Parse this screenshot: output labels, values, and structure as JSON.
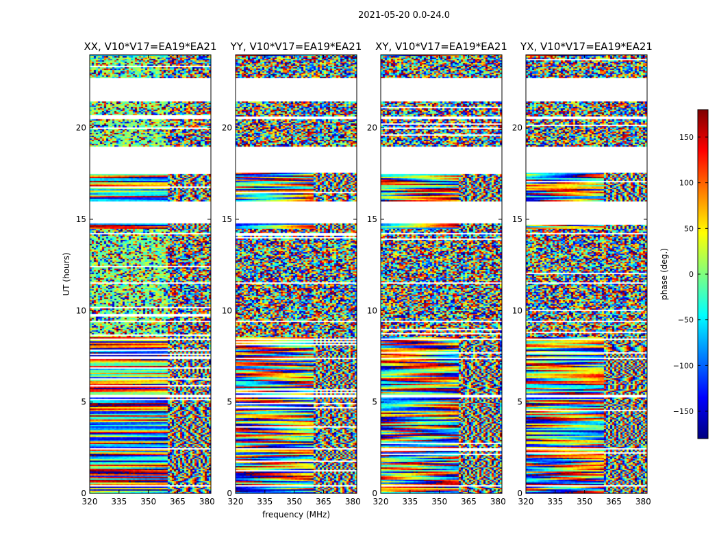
{
  "figure_title": "2021-05-20 0.0-24.0",
  "chart_data": [
    {
      "type": "heatmap",
      "title": "XX, V10*V17=EA19*EA21",
      "xlabel": "",
      "ylabel": "UT (hours)",
      "xlim": [
        320,
        382
      ],
      "ylim": [
        0,
        24
      ],
      "x_ticks": [
        320,
        335,
        350,
        365,
        380
      ],
      "y_ticks": [
        0,
        5,
        10,
        15,
        20
      ]
    },
    {
      "type": "heatmap",
      "title": "YY, V10*V17=EA19*EA21",
      "xlabel": "frequency (MHz)",
      "ylabel": "",
      "xlim": [
        320,
        382
      ],
      "ylim": [
        0,
        24
      ],
      "x_ticks": [
        320,
        335,
        350,
        365,
        380
      ],
      "y_ticks": [
        0,
        5,
        10,
        15,
        20
      ]
    },
    {
      "type": "heatmap",
      "title": "XY, V10*V17=EA19*EA21",
      "xlabel": "",
      "ylabel": "",
      "xlim": [
        320,
        382
      ],
      "ylim": [
        0,
        24
      ],
      "x_ticks": [
        320,
        335,
        350,
        365,
        380
      ],
      "y_ticks": [
        0,
        5,
        10,
        15,
        20
      ]
    },
    {
      "type": "heatmap",
      "title": "YX, V10*V17=EA19*EA21",
      "xlabel": "",
      "ylabel": "",
      "xlim": [
        320,
        382
      ],
      "ylim": [
        0,
        24
      ],
      "x_ticks": [
        320,
        335,
        350,
        365,
        380
      ],
      "y_ticks": [
        0,
        5,
        10,
        15,
        20
      ]
    }
  ],
  "data_gaps_hours": [
    [
      0.45,
      0.5
    ],
    [
      1.45,
      1.5
    ],
    [
      2.4,
      2.5
    ],
    [
      3.3,
      3.35
    ],
    [
      4.3,
      4.35
    ],
    [
      5.3,
      5.4
    ],
    [
      6.4,
      6.45
    ],
    [
      7.4,
      7.5
    ],
    [
      8.4,
      8.5
    ],
    [
      9.4,
      9.5
    ],
    [
      11.5,
      11.6
    ],
    [
      14.2,
      14.3
    ],
    [
      14.8,
      16.0
    ],
    [
      17.6,
      19.0
    ],
    [
      20.5,
      20.65
    ],
    [
      21.5,
      22.8
    ]
  ],
  "colorbar": {
    "label": "phase (deg.)",
    "range": [
      -180,
      180
    ],
    "ticks": [
      -150,
      -100,
      -50,
      0,
      50,
      100,
      150
    ],
    "tick_labels": [
      "−150",
      "−100",
      "−50",
      "0",
      "50",
      "100",
      "150"
    ],
    "stops": [
      "#00007f",
      "#0000ff",
      "#007fff",
      "#00ffff",
      "#7fff7f",
      "#ffff00",
      "#ff7f00",
      "#ff0000",
      "#7f0000"
    ]
  }
}
